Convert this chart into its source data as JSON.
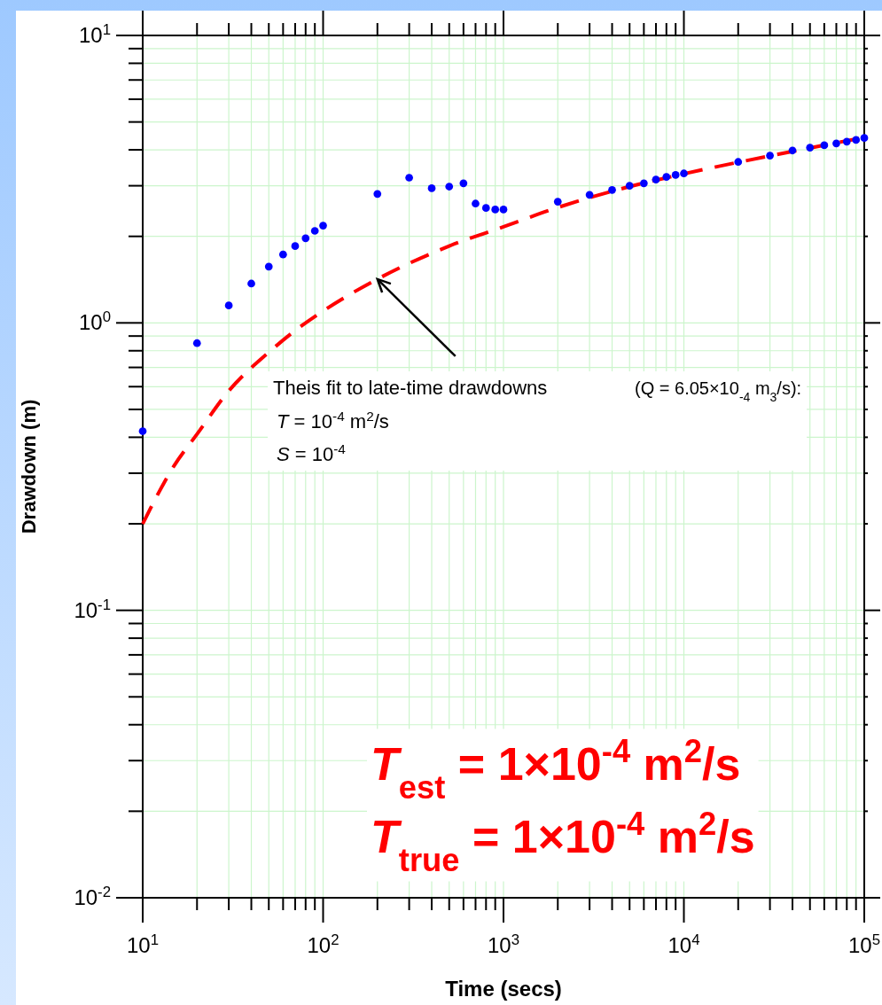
{
  "chart_data": {
    "type": "scatter",
    "xlabel": "Time (secs)",
    "ylabel": "Drawdown (m)",
    "log": "xy",
    "grid": true,
    "xlim": [
      10,
      100000
    ],
    "ylim": [
      0.01,
      10
    ],
    "xticks": [
      {
        "value": 10,
        "label": "10$^{1}$"
      },
      {
        "value": 20,
        "label": null
      },
      {
        "value": 30,
        "label": null
      },
      {
        "value": 40,
        "label": null
      },
      {
        "value": 50,
        "label": null
      },
      {
        "value": 60,
        "label": null
      },
      {
        "value": 70,
        "label": null
      },
      {
        "value": 80,
        "label": null
      },
      {
        "value": 90,
        "label": null
      },
      {
        "value": 100,
        "label": "10$^{2}$"
      },
      {
        "value": 200,
        "label": null
      },
      {
        "value": 300,
        "label": null
      },
      {
        "value": 400,
        "label": null
      },
      {
        "value": 500,
        "label": null
      },
      {
        "value": 600,
        "label": null
      },
      {
        "value": 700,
        "label": null
      },
      {
        "value": 800,
        "label": null
      },
      {
        "value": 900,
        "label": null
      },
      {
        "value": 1000,
        "label": "10$^{3}$"
      },
      {
        "value": 2000,
        "label": null
      },
      {
        "value": 3000,
        "label": null
      },
      {
        "value": 4000,
        "label": null
      },
      {
        "value": 5000,
        "label": null
      },
      {
        "value": 6000,
        "label": null
      },
      {
        "value": 7000,
        "label": null
      },
      {
        "value": 8000,
        "label": null
      },
      {
        "value": 9000,
        "label": null
      },
      {
        "value": 10000,
        "label": "10$^{4}$"
      },
      {
        "value": 20000,
        "label": null
      },
      {
        "value": 30000,
        "label": null
      },
      {
        "value": 40000,
        "label": null
      },
      {
        "value": 50000,
        "label": null
      },
      {
        "value": 60000,
        "label": null
      },
      {
        "value": 70000,
        "label": null
      },
      {
        "value": 80000,
        "label": null
      },
      {
        "value": 90000,
        "label": null
      },
      {
        "value": 100000,
        "label": "10$^{5}$"
      }
    ],
    "yticks": [
      {
        "value": 0.01,
        "label": "10$^{-2}$"
      },
      {
        "value": 0.02,
        "label": null
      },
      {
        "value": 0.03,
        "label": null
      },
      {
        "value": 0.04,
        "label": null
      },
      {
        "value": 0.05,
        "label": null
      },
      {
        "value": 0.06,
        "label": null
      },
      {
        "value": 0.07,
        "label": null
      },
      {
        "value": 0.08,
        "label": null
      },
      {
        "value": 0.09,
        "label": null
      },
      {
        "value": 0.1,
        "label": "10$^{-1}$"
      },
      {
        "value": 0.2,
        "label": null
      },
      {
        "value": 0.3,
        "label": null
      },
      {
        "value": 0.4,
        "label": null
      },
      {
        "value": 0.5,
        "label": null
      },
      {
        "value": 0.6,
        "label": null
      },
      {
        "value": 0.7,
        "label": null
      },
      {
        "value": 0.8,
        "label": null
      },
      {
        "value": 0.9,
        "label": null
      },
      {
        "value": 1,
        "label": "10$^{0}$"
      },
      {
        "value": 2,
        "label": null
      },
      {
        "value": 3,
        "label": null
      },
      {
        "value": 4,
        "label": null
      },
      {
        "value": 5,
        "label": null
      },
      {
        "value": 6,
        "label": null
      },
      {
        "value": 7,
        "label": null
      },
      {
        "value": 8,
        "label": null
      },
      {
        "value": 9,
        "label": null
      },
      {
        "value": 10,
        "label": "10$^{1}$"
      }
    ],
    "series": [
      {
        "type": "line",
        "color": "#ff0000",
        "line_style": "dashed",
        "marker": "none",
        "x": [
          10,
          15,
          20,
          30,
          50,
          70,
          100,
          200,
          500,
          1000,
          2000,
          5000,
          10000,
          20000,
          50000,
          100000
        ],
        "values": [
          0.2,
          0.32,
          0.41,
          0.58,
          0.79,
          0.94,
          1.1,
          1.42,
          1.85,
          2.16,
          2.52,
          2.98,
          3.3,
          3.62,
          4.06,
          4.42
        ]
      },
      {
        "color": "#0000ff",
        "marker": "circle",
        "x": [
          10,
          20,
          30,
          40,
          50,
          60,
          70,
          80,
          90,
          100,
          200,
          300,
          400,
          500,
          600,
          700,
          800,
          900,
          1000,
          2000,
          3000,
          4000,
          5000,
          6000,
          7000,
          8000,
          9000,
          10000,
          20000,
          30000,
          40000,
          50000,
          60000,
          70000,
          80000,
          90000,
          100000
        ],
        "values": [
          0.42,
          0.85,
          1.15,
          1.37,
          1.57,
          1.73,
          1.85,
          1.97,
          2.09,
          2.18,
          2.81,
          3.2,
          2.94,
          2.98,
          3.06,
          2.6,
          2.51,
          2.48,
          2.48,
          2.64,
          2.79,
          2.9,
          3.0,
          3.06,
          3.15,
          3.22,
          3.27,
          3.31,
          3.63,
          3.82,
          3.98,
          4.07,
          4.15,
          4.21,
          4.27,
          4.33,
          4.4
        ]
      }
    ],
    "annotations": [
      {
        "text": "Theis fit to late-time drawdowns",
        "x": 200,
        "y": 1.42
      },
      "(Q = 6.05×10$_{-4}$ m$_{3}$/s):",
      "T = 10$^{-4}$ m$^{2}$/s",
      "S = 10$^{-4}$",
      "T$_{est}$  = 1×10$^{-4}$ m$^{2}$/s",
      "T$_{true}$ = 1×10$^{-4}$ m$^{2}$/s"
    ]
  }
}
